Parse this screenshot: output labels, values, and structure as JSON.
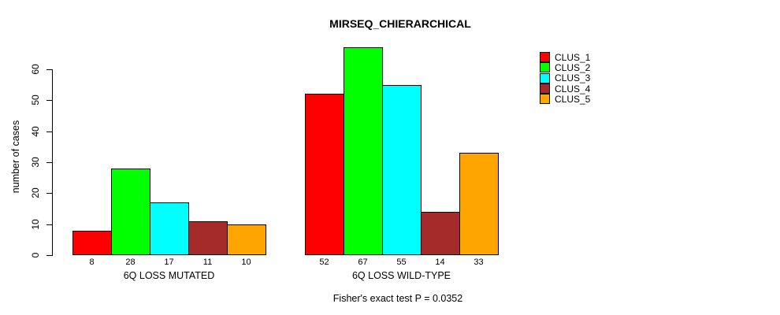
{
  "chart_data": {
    "type": "bar",
    "title": "MIRSEQ_CHIERARCHICAL",
    "ylabel": "number of cases",
    "xlabel": "",
    "footer": "Fisher's exact test P = 0.0352",
    "background_color": "#FFFFFF",
    "grid": false,
    "value_labels_shown": true,
    "categories": [
      "6Q LOSS MUTATED",
      "6Q LOSS WILD-TYPE"
    ],
    "series": [
      {
        "name": "CLUS_1",
        "color": "#FF0000",
        "values": [
          8,
          52
        ]
      },
      {
        "name": "CLUS_2",
        "color": "#00FF00",
        "values": [
          28,
          67
        ]
      },
      {
        "name": "CLUS_3",
        "color": "#00FFFF",
        "values": [
          17,
          55
        ]
      },
      {
        "name": "CLUS_4",
        "color": "#A52A2A",
        "values": [
          11,
          14
        ]
      },
      {
        "name": "CLUS_5",
        "color": "#FFA500",
        "values": [
          10,
          33
        ]
      }
    ],
    "y_axis": {
      "ticks": [
        0,
        10,
        20,
        30,
        40,
        50,
        60
      ],
      "range": [
        0,
        67
      ]
    },
    "legend": {
      "position": "right",
      "entries": [
        "CLUS_1",
        "CLUS_2",
        "CLUS_3",
        "CLUS_4",
        "CLUS_5"
      ]
    }
  }
}
